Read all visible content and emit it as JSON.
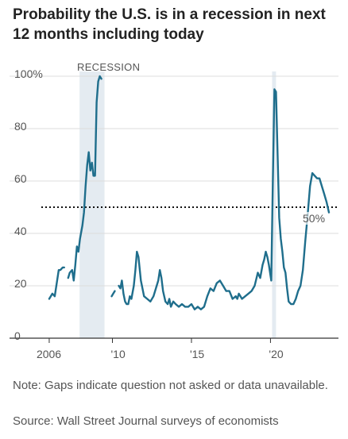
{
  "chart_data": {
    "type": "line",
    "title": "Probability the U.S. is in a recession in next 12 months including today",
    "ylabel": "",
    "xlabel": "",
    "ylim": [
      0,
      100
    ],
    "xlim": [
      2005.5,
      2024
    ],
    "y_ticks": [
      "100%",
      "80",
      "60",
      "40",
      "20",
      "0"
    ],
    "y_tick_values": [
      100,
      80,
      60,
      40,
      20,
      0
    ],
    "x_ticks": [
      "2006",
      "'10",
      "'15",
      "'20"
    ],
    "x_tick_values": [
      2006,
      2010,
      2015,
      2020
    ],
    "grid": "horizontal",
    "line_color": "#1f6e8c",
    "shade_color": "#e4ebf1",
    "shaded_periods": [
      {
        "label": "RECESSION",
        "start": 2007.92,
        "end": 2009.5
      },
      {
        "label": "",
        "start": 2020.1,
        "end": 2020.35
      }
    ],
    "reference_line": {
      "value": 50,
      "label": "50%",
      "style": "dotted"
    },
    "series": [
      {
        "segments": [
          [
            [
              2006.0,
              15
            ],
            [
              2006.1,
              16
            ],
            [
              2006.2,
              17
            ],
            [
              2006.35,
              16
            ],
            [
              2006.5,
              22
            ],
            [
              2006.6,
              26
            ],
            [
              2006.7,
              26
            ],
            [
              2006.85,
              27
            ],
            [
              2006.95,
              27
            ]
          ],
          [
            [
              2007.2,
              23
            ],
            [
              2007.3,
              25
            ],
            [
              2007.45,
              26
            ],
            [
              2007.55,
              22
            ],
            [
              2007.65,
              28
            ],
            [
              2007.75,
              35
            ],
            [
              2007.85,
              33
            ],
            [
              2007.95,
              38
            ],
            [
              2008.1,
              43
            ],
            [
              2008.2,
              48
            ],
            [
              2008.3,
              58
            ],
            [
              2008.4,
              66
            ],
            [
              2008.5,
              71
            ],
            [
              2008.6,
              64
            ],
            [
              2008.7,
              67
            ],
            [
              2008.8,
              62
            ],
            [
              2008.9,
              62
            ],
            [
              2009.0,
              90
            ],
            [
              2009.1,
              98
            ],
            [
              2009.2,
              100
            ],
            [
              2009.3,
              99
            ]
          ],
          [
            [
              2009.95,
              16
            ],
            [
              2010.05,
              17
            ],
            [
              2010.15,
              18
            ]
          ],
          [
            [
              2010.4,
              20
            ],
            [
              2010.5,
              19
            ],
            [
              2010.6,
              22
            ],
            [
              2010.7,
              17
            ],
            [
              2010.8,
              14
            ],
            [
              2010.9,
              13
            ],
            [
              2011.0,
              13
            ],
            [
              2011.1,
              16
            ],
            [
              2011.2,
              15
            ],
            [
              2011.35,
              20
            ],
            [
              2011.45,
              26
            ],
            [
              2011.55,
              33
            ],
            [
              2011.65,
              31
            ],
            [
              2011.8,
              22
            ],
            [
              2011.9,
              19
            ],
            [
              2012.0,
              16
            ],
            [
              2012.2,
              15
            ],
            [
              2012.4,
              14
            ],
            [
              2012.6,
              16
            ],
            [
              2012.8,
              20
            ],
            [
              2012.9,
              22
            ],
            [
              2013.0,
              26
            ],
            [
              2013.1,
              23
            ],
            [
              2013.2,
              18
            ],
            [
              2013.35,
              14
            ],
            [
              2013.5,
              13
            ],
            [
              2013.6,
              15
            ],
            [
              2013.7,
              12
            ],
            [
              2013.85,
              14
            ],
            [
              2014.0,
              13
            ],
            [
              2014.2,
              12
            ],
            [
              2014.4,
              13
            ],
            [
              2014.6,
              12
            ],
            [
              2014.8,
              12
            ],
            [
              2015.0,
              13
            ],
            [
              2015.2,
              11
            ],
            [
              2015.4,
              12
            ],
            [
              2015.6,
              11
            ],
            [
              2015.8,
              12
            ],
            [
              2016.0,
              16
            ],
            [
              2016.2,
              19
            ],
            [
              2016.4,
              18
            ],
            [
              2016.6,
              21
            ],
            [
              2016.8,
              22
            ],
            [
              2017.0,
              20
            ],
            [
              2017.2,
              18
            ],
            [
              2017.4,
              18
            ],
            [
              2017.6,
              15
            ],
            [
              2017.8,
              16
            ],
            [
              2017.9,
              15
            ],
            [
              2018.0,
              17
            ],
            [
              2018.2,
              15
            ],
            [
              2018.4,
              16
            ],
            [
              2018.6,
              17
            ],
            [
              2018.8,
              18
            ],
            [
              2019.0,
              20
            ],
            [
              2019.2,
              25
            ],
            [
              2019.35,
              23
            ],
            [
              2019.5,
              28
            ],
            [
              2019.6,
              30
            ],
            [
              2019.7,
              33
            ],
            [
              2019.8,
              31
            ],
            [
              2019.9,
              28
            ],
            [
              2020.05,
              22
            ],
            [
              2020.15,
              60
            ],
            [
              2020.25,
              95
            ],
            [
              2020.35,
              94
            ],
            [
              2020.45,
              70
            ],
            [
              2020.55,
              46
            ],
            [
              2020.65,
              38
            ],
            [
              2020.75,
              33
            ],
            [
              2020.85,
              27
            ],
            [
              2020.95,
              25
            ],
            [
              2021.05,
              19
            ],
            [
              2021.15,
              14
            ],
            [
              2021.3,
              13
            ],
            [
              2021.45,
              13
            ],
            [
              2021.6,
              15
            ],
            [
              2021.75,
              18
            ],
            [
              2021.9,
              20
            ],
            [
              2022.05,
              26
            ],
            [
              2022.2,
              37
            ],
            [
              2022.35,
              47
            ],
            [
              2022.5,
              58
            ],
            [
              2022.65,
              63
            ],
            [
              2022.8,
              62
            ],
            [
              2022.95,
              61
            ],
            [
              2023.1,
              61
            ],
            [
              2023.25,
              58
            ],
            [
              2023.4,
              55
            ],
            [
              2023.55,
              52
            ],
            [
              2023.7,
              48
            ]
          ]
        ]
      }
    ]
  },
  "notes": {
    "note": "Note: Gaps indicate question not asked or data unavailable.",
    "source": "Source: Wall Street Journal surveys of economists"
  }
}
